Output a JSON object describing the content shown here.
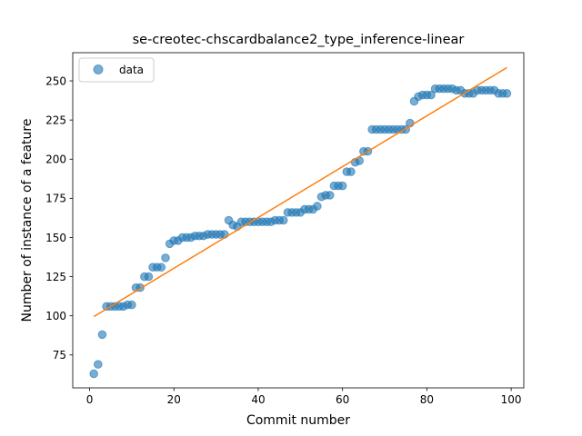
{
  "chart_data": {
    "type": "scatter",
    "title": "se-creotec-chscardbalance2_type_inference-linear",
    "xlabel": "Commit number",
    "ylabel": "Number of instance of a feature",
    "xlim": [
      -4,
      103
    ],
    "ylim": [
      54,
      268
    ],
    "xticks": [
      0,
      20,
      40,
      60,
      80,
      100
    ],
    "yticks": [
      75,
      100,
      125,
      150,
      175,
      200,
      225,
      250
    ],
    "grid": false,
    "legend": {
      "placement": "top-left",
      "entries": [
        "data"
      ]
    },
    "series": [
      {
        "name": "data",
        "mode": "markers",
        "color": "#1f77b4",
        "x": [
          1,
          2,
          3,
          4,
          5,
          6,
          7,
          8,
          9,
          10,
          11,
          12,
          13,
          14,
          15,
          16,
          17,
          18,
          19,
          20,
          21,
          22,
          23,
          24,
          25,
          26,
          27,
          28,
          29,
          30,
          31,
          32,
          33,
          34,
          35,
          36,
          37,
          38,
          39,
          40,
          41,
          42,
          43,
          44,
          45,
          46,
          47,
          48,
          49,
          50,
          51,
          52,
          53,
          54,
          55,
          56,
          57,
          58,
          59,
          60,
          61,
          62,
          63,
          64,
          65,
          66,
          67,
          68,
          69,
          70,
          71,
          72,
          73,
          74,
          75,
          76,
          77,
          78,
          79,
          80,
          81,
          82,
          83,
          84,
          85,
          86,
          87,
          88,
          89,
          90,
          91,
          92,
          93,
          94,
          95,
          96,
          97,
          98,
          99
        ],
        "y": [
          63,
          69,
          88,
          106,
          106,
          106,
          106,
          106,
          107,
          107,
          118,
          118,
          125,
          125,
          131,
          131,
          131,
          137,
          146,
          148,
          148,
          150,
          150,
          150,
          151,
          151,
          151,
          152,
          152,
          152,
          152,
          152,
          161,
          158,
          157,
          160,
          160,
          160,
          160,
          160,
          160,
          160,
          160,
          161,
          161,
          161,
          166,
          166,
          166,
          166,
          168,
          168,
          168,
          170,
          176,
          177,
          177,
          183,
          183,
          183,
          192,
          192,
          198,
          199,
          205,
          205,
          219,
          219,
          219,
          219,
          219,
          219,
          219,
          219,
          219,
          223,
          237,
          240,
          241,
          241,
          241,
          245,
          245,
          245,
          245,
          245,
          244,
          244,
          242,
          242,
          242,
          244,
          244,
          244,
          244,
          244,
          242,
          242,
          242
        ]
      },
      {
        "name": "",
        "mode": "line",
        "color": "#ff7f0e",
        "x": [
          1,
          99
        ],
        "y": [
          99.5,
          258.5
        ]
      }
    ]
  }
}
